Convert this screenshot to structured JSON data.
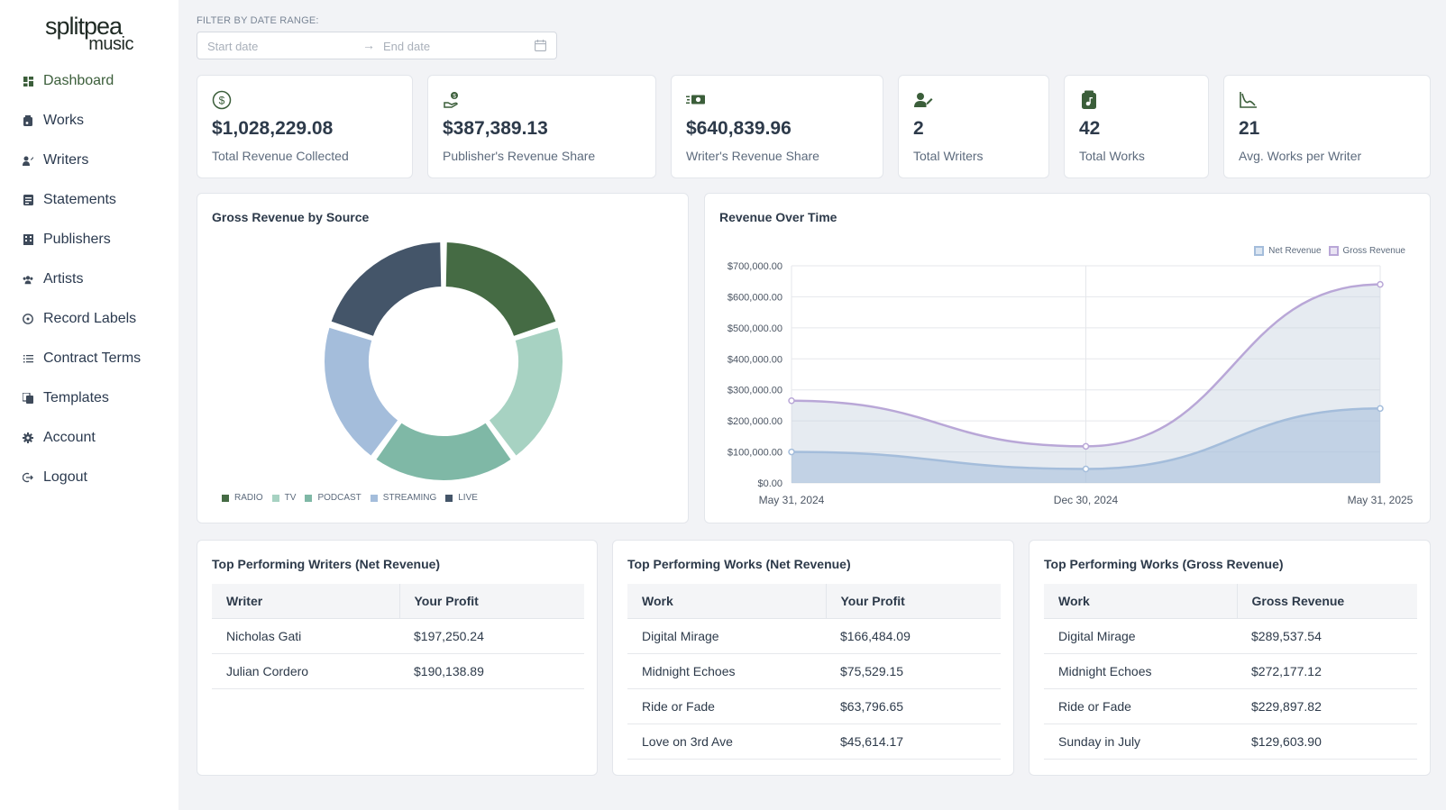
{
  "brand": {
    "logo_top": "splitpea",
    "logo_bottom": "music"
  },
  "sidebar": {
    "items": [
      {
        "label": "Dashboard",
        "icon": "dashboard-icon",
        "active": true
      },
      {
        "label": "Works",
        "icon": "music-file-icon"
      },
      {
        "label": "Writers",
        "icon": "writer-icon"
      },
      {
        "label": "Statements",
        "icon": "statement-icon"
      },
      {
        "label": "Publishers",
        "icon": "building-icon"
      },
      {
        "label": "Artists",
        "icon": "users-icon"
      },
      {
        "label": "Record Labels",
        "icon": "record-icon"
      },
      {
        "label": "Contract Terms",
        "icon": "list-icon"
      },
      {
        "label": "Templates",
        "icon": "copy-icon"
      },
      {
        "label": "Account",
        "icon": "gear-icon"
      },
      {
        "label": "Logout",
        "icon": "logout-icon"
      }
    ]
  },
  "filter": {
    "label": "FILTER BY DATE RANGE:",
    "start_placeholder": "Start date",
    "end_placeholder": "End date",
    "arrow": "→"
  },
  "kpis": [
    {
      "value": "$1,028,229.08",
      "label": "Total Revenue Collected",
      "icon": "dollar-circle-icon"
    },
    {
      "value": "$387,389.13",
      "label": "Publisher's Revenue Share",
      "icon": "hand-money-icon"
    },
    {
      "value": "$640,839.96",
      "label": "Writer's Revenue Share",
      "icon": "money-bill-icon"
    },
    {
      "value": "2",
      "label": "Total Writers",
      "icon": "writer-icon"
    },
    {
      "value": "42",
      "label": "Total Works",
      "icon": "music-file-icon"
    },
    {
      "value": "21",
      "label": "Avg. Works per Writer",
      "icon": "curve-chart-icon"
    }
  ],
  "donut": {
    "title": "Gross Revenue by Source",
    "chart_data": {
      "type": "pie",
      "categories": [
        "RADIO",
        "TV",
        "PODCAST",
        "STREAMING",
        "LIVE"
      ],
      "values": [
        20,
        20,
        20,
        20,
        20
      ],
      "colors": [
        "#456b44",
        "#a7d2c2",
        "#7fb8a6",
        "#a4bddb",
        "#445569"
      ]
    }
  },
  "line": {
    "title": "Revenue Over Time",
    "chart_data": {
      "type": "area",
      "x": [
        "May 31, 2024",
        "Dec 30, 2024",
        "May 31, 2025"
      ],
      "series": [
        {
          "name": "Net Revenue",
          "values": [
            100000,
            45000,
            240000
          ],
          "color": "#a4bddb"
        },
        {
          "name": "Gross Revenue",
          "values": [
            265000,
            118000,
            640000
          ],
          "color": "#b9a7d7"
        }
      ],
      "ylim": [
        0,
        700000
      ],
      "yticks": [
        "$700,000.00",
        "$600,000.00",
        "$500,000.00",
        "$400,000.00",
        "$300,000.00",
        "$200,000.00",
        "$100,000.00",
        "$0.00"
      ],
      "ytick_values": [
        700000,
        600000,
        500000,
        400000,
        300000,
        200000,
        100000,
        0
      ],
      "xticks": [
        "May 31, 2024",
        "Dec 30, 2024",
        "May 31, 2025"
      ],
      "legend_position": "top-right",
      "grid": true
    }
  },
  "tables": [
    {
      "title": "Top Performing Writers (Net Revenue)",
      "headers": [
        "Writer",
        "Your Profit"
      ],
      "rows": [
        [
          "Nicholas Gati",
          "$197,250.24"
        ],
        [
          "Julian Cordero",
          "$190,138.89"
        ]
      ]
    },
    {
      "title": "Top Performing Works (Net Revenue)",
      "headers": [
        "Work",
        "Your Profit"
      ],
      "rows": [
        [
          "Digital Mirage",
          "$166,484.09"
        ],
        [
          "Midnight Echoes",
          "$75,529.15"
        ],
        [
          "Ride or Fade",
          "$63,796.65"
        ],
        [
          "Love on 3rd Ave",
          "$45,614.17"
        ]
      ]
    },
    {
      "title": "Top Performing Works (Gross Revenue)",
      "headers": [
        "Work",
        "Gross Revenue"
      ],
      "rows": [
        [
          "Digital Mirage",
          "$289,537.54"
        ],
        [
          "Midnight Echoes",
          "$272,177.12"
        ],
        [
          "Ride or Fade",
          "$229,897.82"
        ],
        [
          "Sunday in July",
          "$129,603.90"
        ]
      ]
    }
  ]
}
